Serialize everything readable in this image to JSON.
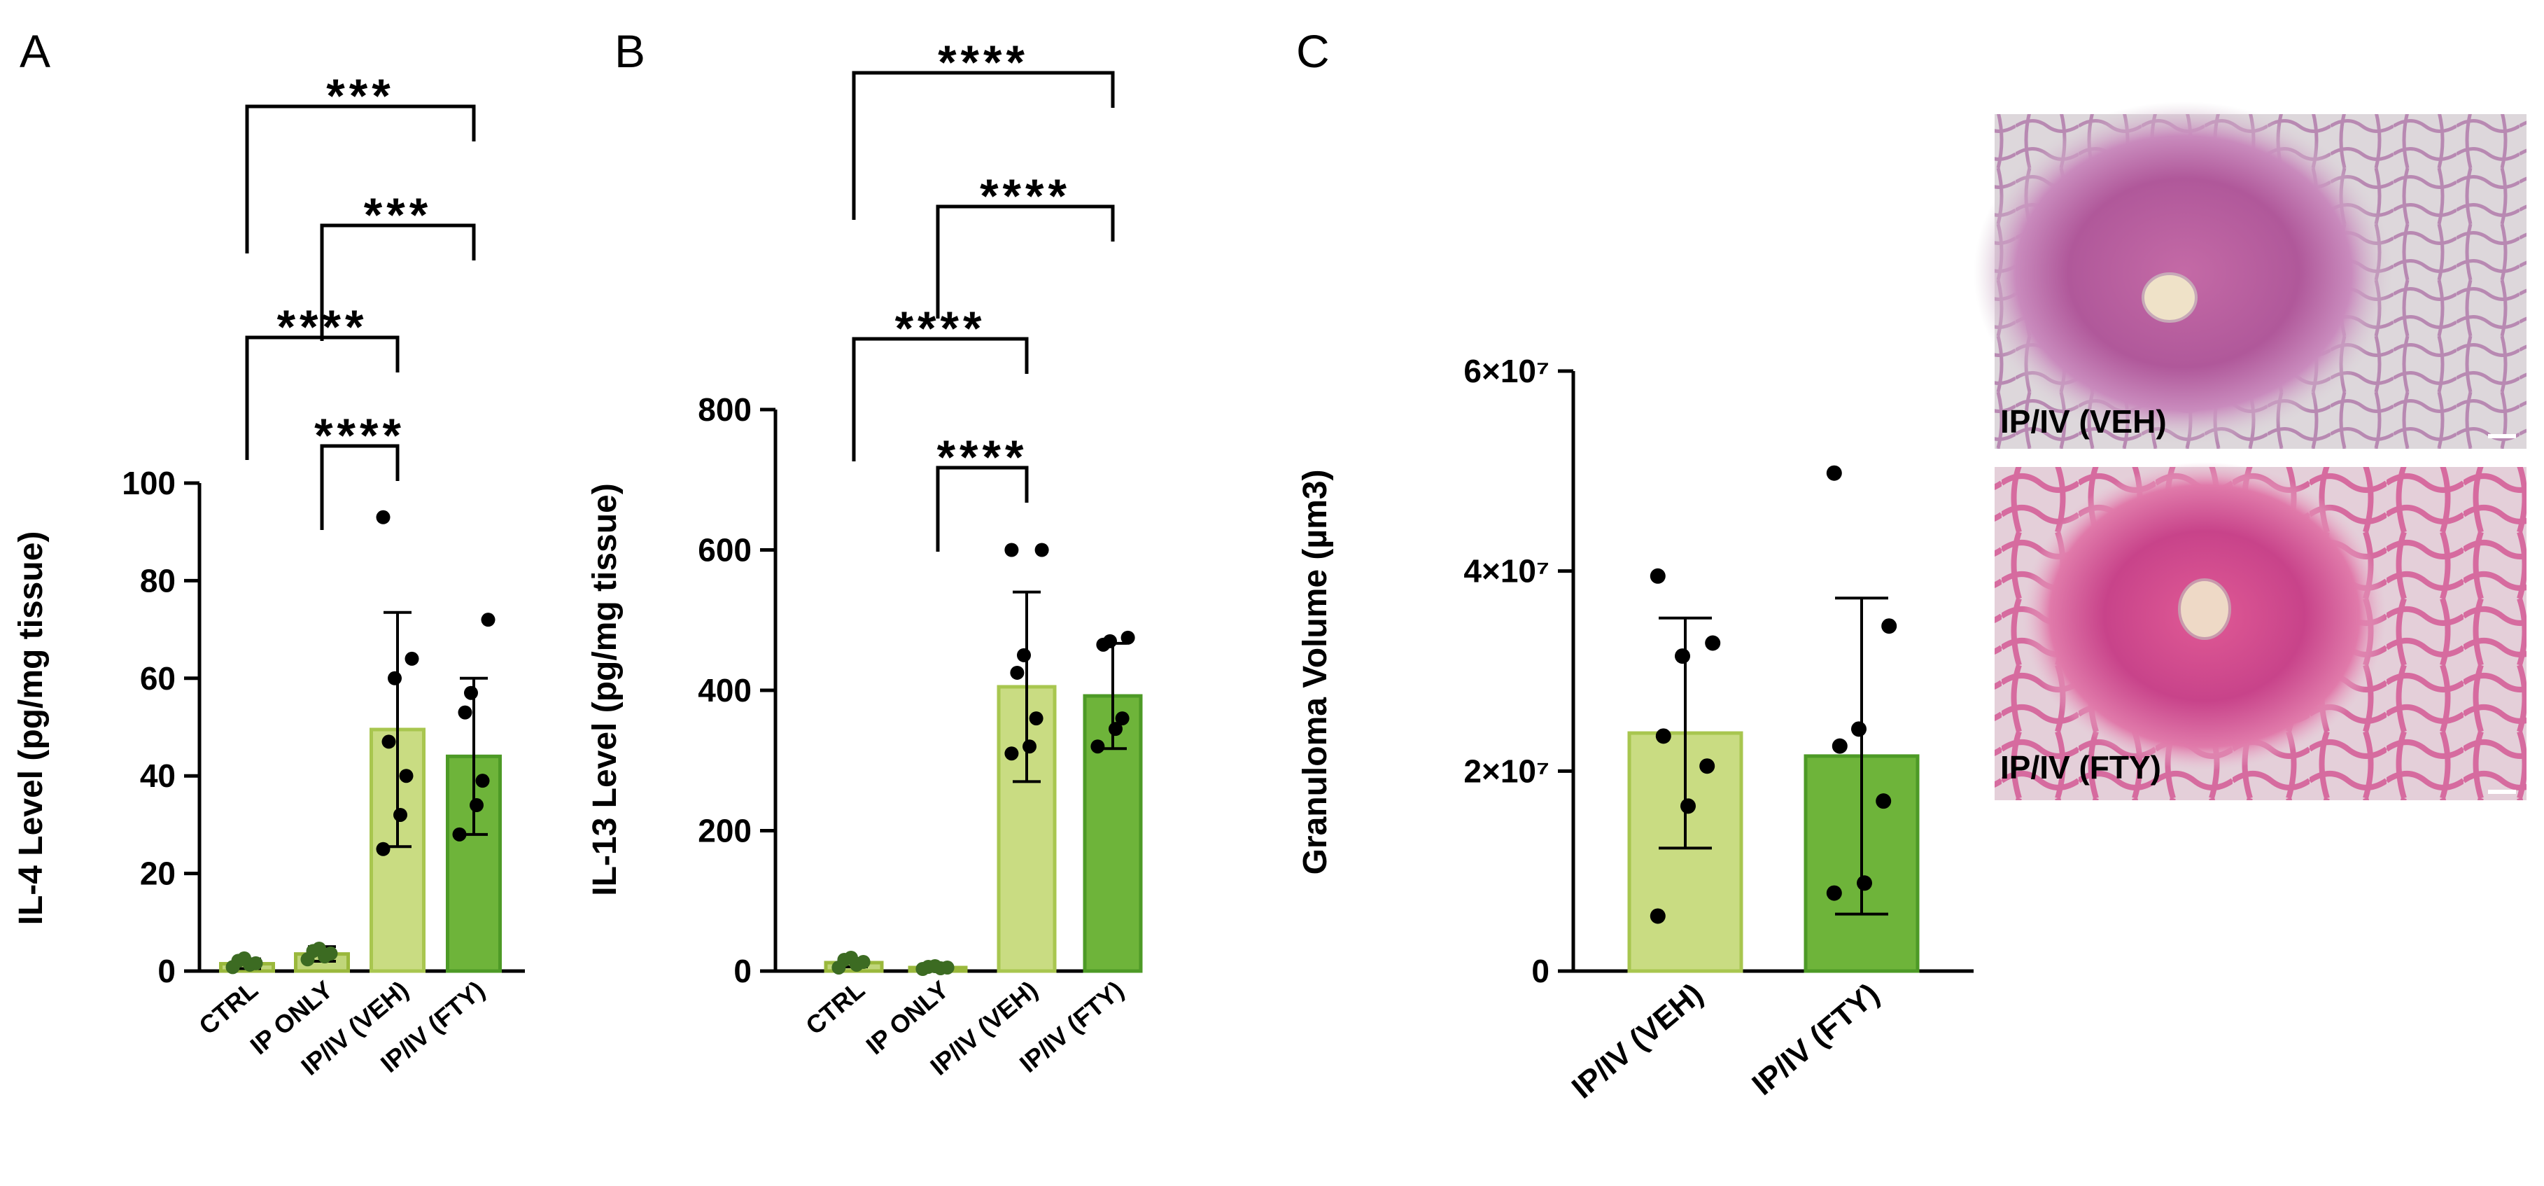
{
  "panels": [
    "A",
    "B",
    "C"
  ],
  "chart_data": [
    {
      "panel": "A",
      "type": "bar",
      "ylabel": "IL-4 Level (pg/mg tissue)",
      "ylim": [
        0,
        100
      ],
      "yticks": [
        0,
        20,
        40,
        60,
        80,
        100
      ],
      "categories": [
        "CTRL",
        "IP ONLY",
        "IP/IV (VEH)",
        "IP/IV (FTY)"
      ],
      "means": [
        1.5,
        3.5,
        49.5,
        44
      ],
      "sd": [
        1,
        1.5,
        24,
        16
      ],
      "points": [
        [
          0.8,
          1.3,
          1.6,
          2.1,
          2.6
        ],
        [
          2.4,
          3.0,
          3.6,
          4.1,
          4.6
        ],
        [
          25,
          32,
          40,
          47,
          60,
          64,
          93
        ],
        [
          28,
          34,
          39,
          53,
          57,
          72
        ]
      ],
      "colors": [
        "#c0d67a",
        "#c0d67a",
        "#c9dc82",
        "#6eb43a"
      ],
      "edge_colors": [
        "#9ab83c",
        "#9ab83c",
        "#a8c64f",
        "#4d9a26"
      ],
      "significance": [
        {
          "from": 0,
          "to": 3,
          "label": "***"
        },
        {
          "from": 1,
          "to": 3,
          "label": "***"
        },
        {
          "from": 0,
          "to": 2,
          "label": "****"
        },
        {
          "from": 1,
          "to": 2,
          "label": "****"
        }
      ]
    },
    {
      "panel": "B",
      "type": "bar",
      "ylabel": "IL-13 Level (pg/mg tissue)",
      "ylim": [
        0,
        800
      ],
      "yticks": [
        0,
        200,
        400,
        600,
        800
      ],
      "categories": [
        "CTRL",
        "IP ONLY",
        "IP/IV (VEH)",
        "IP/IV (FTY)"
      ],
      "means": [
        12,
        5,
        405,
        392
      ],
      "sd": [
        6,
        2,
        135,
        75
      ],
      "points": [
        [
          5,
          9,
          13,
          16,
          19
        ],
        [
          3,
          4,
          5,
          6,
          7
        ],
        [
          310,
          320,
          360,
          425,
          450,
          600,
          600
        ],
        [
          320,
          345,
          360,
          465,
          470,
          475
        ]
      ],
      "colors": [
        "#c0d67a",
        "#c0d67a",
        "#c9dc82",
        "#6eb43a"
      ],
      "edge_colors": [
        "#9ab83c",
        "#9ab83c",
        "#a8c64f",
        "#4d9a26"
      ],
      "significance": [
        {
          "from": 0,
          "to": 3,
          "label": "****"
        },
        {
          "from": 1,
          "to": 3,
          "label": "****"
        },
        {
          "from": 0,
          "to": 2,
          "label": "****"
        },
        {
          "from": 1,
          "to": 2,
          "label": "****"
        }
      ]
    },
    {
      "panel": "C",
      "type": "bar",
      "ylabel": "Granuloma Volume (µm3)",
      "ylim": [
        0,
        6
      ],
      "yticks": [
        0,
        2,
        4,
        6
      ],
      "ytick_labels": [
        "0",
        "2×10⁷",
        "4×10⁷",
        "6×10⁷"
      ],
      "value_scale": "×10^7 µm3",
      "categories": [
        "IP/IV (VEH)",
        "IP/IV (FTY)"
      ],
      "means": [
        2.38,
        2.15
      ],
      "sd": [
        1.15,
        1.58
      ],
      "points": [
        [
          0.55,
          1.65,
          2.05,
          2.35,
          3.15,
          3.28,
          3.95
        ],
        [
          0.78,
          0.88,
          1.7,
          2.25,
          2.42,
          3.45,
          4.98
        ]
      ],
      "colors": [
        "#c9dc82",
        "#6eb43a"
      ],
      "edge_colors": [
        "#a8c64f",
        "#4d9a26"
      ],
      "significance": []
    }
  ],
  "micrographs": [
    {
      "label": "IP/IV (VEH)"
    },
    {
      "label": "IP/IV (FTY)"
    }
  ]
}
